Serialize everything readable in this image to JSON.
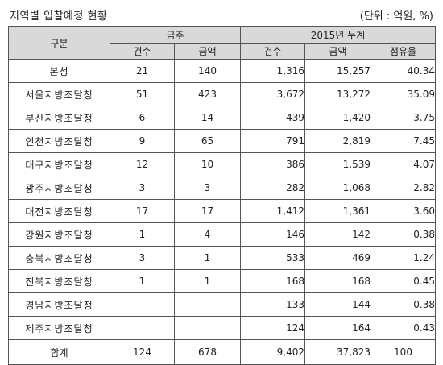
{
  "title": "지역별 입찰예정 현황",
  "unit": "(단위 : 억원, %)",
  "header": {
    "region": "구분",
    "group_this_week": "금주",
    "group_2015": "2015년 누계",
    "count": "건수",
    "amount": "금액",
    "share": "점유율"
  },
  "rows": [
    {
      "name": "본청",
      "wk_count": "21",
      "wk_amount": "140",
      "yr_count": "1,316",
      "yr_amount": "15,257",
      "share": "40.34"
    },
    {
      "name": "서울지방조달청",
      "wk_count": "51",
      "wk_amount": "423",
      "yr_count": "3,672",
      "yr_amount": "13,272",
      "share": "35.09"
    },
    {
      "name": "부산지방조달청",
      "wk_count": "6",
      "wk_amount": "14",
      "yr_count": "439",
      "yr_amount": "1,420",
      "share": "3.75"
    },
    {
      "name": "인천지방조달청",
      "wk_count": "9",
      "wk_amount": "65",
      "yr_count": "791",
      "yr_amount": "2,819",
      "share": "7.45"
    },
    {
      "name": "대구지방조달청",
      "wk_count": "12",
      "wk_amount": "10",
      "yr_count": "386",
      "yr_amount": "1,539",
      "share": "4.07"
    },
    {
      "name": "광주지방조달청",
      "wk_count": "3",
      "wk_amount": "3",
      "yr_count": "282",
      "yr_amount": "1,068",
      "share": "2.82"
    },
    {
      "name": "대전지방조달청",
      "wk_count": "17",
      "wk_amount": "17",
      "yr_count": "1,412",
      "yr_amount": "1,361",
      "share": "3.60"
    },
    {
      "name": "강원지방조달청",
      "wk_count": "1",
      "wk_amount": "4",
      "yr_count": "146",
      "yr_amount": "142",
      "share": "0.38"
    },
    {
      "name": "충북지방조달청",
      "wk_count": "3",
      "wk_amount": "1",
      "yr_count": "533",
      "yr_amount": "469",
      "share": "1.24"
    },
    {
      "name": "전북지방조달청",
      "wk_count": "1",
      "wk_amount": "1",
      "yr_count": "168",
      "yr_amount": "168",
      "share": "0.45"
    },
    {
      "name": "경남지방조달청",
      "wk_count": "",
      "wk_amount": "",
      "yr_count": "133",
      "yr_amount": "144",
      "share": "0.38"
    },
    {
      "name": "제주지방조달청",
      "wk_count": "",
      "wk_amount": "",
      "yr_count": "124",
      "yr_amount": "164",
      "share": "0.43"
    }
  ],
  "total": {
    "name": "합계",
    "wk_count": "124",
    "wk_amount": "678",
    "yr_count": "9,402",
    "yr_amount": "37,823",
    "share": "100"
  }
}
